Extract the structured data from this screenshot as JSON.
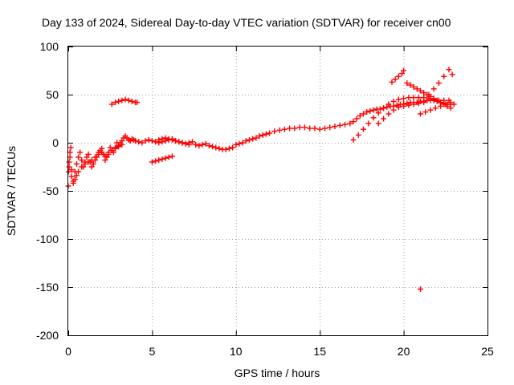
{
  "chart_data": {
    "type": "scatter",
    "title": "Day 133 of 2024, Sidereal Day-to-day VTEC variation (SDTVAR) for receiver cn00",
    "xlabel": "GPS time / hours",
    "ylabel": "SDTVAR / TECUs",
    "xlim": [
      0,
      25
    ],
    "ylim": [
      -200,
      100
    ],
    "x_ticks": [
      0,
      5,
      10,
      15,
      20,
      25
    ],
    "x_tick_labels": [
      "0",
      "5",
      "10",
      "15",
      "20",
      "25"
    ],
    "y_ticks": [
      -200,
      -150,
      -100,
      -50,
      0,
      50,
      100
    ],
    "y_tick_labels": [
      "-200",
      "-150",
      "-100",
      "-50",
      "0",
      "50",
      "100"
    ],
    "grid": true,
    "marker": "+",
    "color": "#ff0000",
    "series": [
      {
        "name": "SDTVAR",
        "x": [
          0.0,
          0.02,
          0.05,
          0.1,
          0.2,
          0.3,
          0.4,
          0.5,
          0.6,
          0.7,
          0.8,
          0.9,
          1.0,
          1.1,
          1.2,
          1.3,
          1.4,
          1.5,
          1.6,
          1.7,
          1.8,
          1.9,
          2.0,
          2.1,
          2.2,
          2.3,
          2.4,
          2.5,
          2.6,
          2.7,
          2.8,
          2.9,
          3.0,
          3.1,
          3.2,
          3.3,
          3.4,
          3.5,
          3.6,
          3.7,
          3.8,
          3.9,
          4.0,
          4.2,
          4.4,
          4.6,
          4.8,
          5.0,
          5.2,
          5.4,
          5.6,
          5.8,
          6.0,
          6.2,
          6.4,
          6.6,
          6.8,
          7.0,
          7.2,
          7.4,
          7.6,
          7.8,
          8.0,
          8.2,
          8.4,
          8.6,
          8.8,
          9.0,
          9.2,
          9.4,
          9.6,
          9.8,
          10.0,
          10.2,
          10.4,
          10.6,
          10.8,
          11.0,
          11.2,
          11.4,
          11.6,
          11.8,
          12.0,
          12.3,
          12.6,
          12.9,
          13.2,
          13.5,
          13.8,
          14.1,
          14.4,
          14.7,
          15.0,
          15.3,
          15.6,
          15.9,
          16.2,
          16.5,
          16.8,
          17.0,
          17.2,
          17.4,
          17.6,
          17.8,
          18.0,
          18.2,
          18.4,
          18.6,
          18.8,
          19.0,
          19.2,
          19.4,
          19.6,
          19.8,
          20.0,
          20.2,
          20.4,
          20.6,
          20.8,
          21.0,
          21.2,
          21.4,
          21.6,
          21.8,
          22.0,
          22.2,
          22.4,
          22.6,
          22.8,
          23.0,
          0.05,
          0.1,
          0.15,
          0.2,
          0.3,
          0.4,
          0.5,
          0.6,
          0.8,
          1.0,
          1.2,
          1.4,
          1.6,
          1.8,
          2.0,
          2.2,
          2.4,
          2.6,
          2.8,
          3.0,
          3.2,
          2.6,
          2.8,
          3.0,
          3.2,
          3.4,
          3.6,
          3.8,
          4.0,
          4.1,
          5.0,
          5.2,
          5.4,
          5.6,
          5.8,
          6.0,
          6.2,
          5.4,
          5.6,
          5.8,
          6.0,
          6.2,
          6.4,
          6.6,
          6.8,
          7.0,
          7.2,
          17.0,
          17.3,
          17.6,
          17.9,
          18.2,
          18.5,
          18.8,
          19.1,
          19.4,
          19.7,
          20.0,
          20.3,
          20.6,
          20.9,
          21.2,
          21.5,
          21.8,
          22.1,
          22.4,
          22.7,
          19.3,
          19.5,
          19.7,
          19.9,
          20.0,
          20.2,
          20.4,
          20.6,
          20.8,
          21.0,
          21.2,
          21.4,
          21.6,
          21.8,
          22.0,
          22.2,
          22.4,
          22.6,
          22.8,
          21.5,
          21.8,
          22.1,
          22.4,
          22.7,
          21.0,
          21.3,
          21.6,
          21.9,
          22.2,
          22.5,
          22.8,
          18.5,
          18.8,
          19.1,
          19.4,
          19.7,
          20.0,
          20.3,
          20.6,
          20.9,
          21.2,
          22.9,
          21.0
        ],
        "y": [
          -45,
          -30,
          -20,
          -10,
          -35,
          -40,
          -30,
          -22,
          -15,
          -10,
          -18,
          -25,
          -20,
          -15,
          -12,
          -20,
          -25,
          -22,
          -18,
          -15,
          -10,
          -8,
          -6,
          -12,
          -18,
          -15,
          -10,
          -5,
          -8,
          -10,
          -5,
          0,
          -3,
          0,
          2,
          5,
          7,
          5,
          3,
          2,
          4,
          3,
          2,
          1,
          0,
          2,
          3,
          2,
          1,
          0,
          1,
          2,
          3,
          4,
          2,
          1,
          0,
          -1,
          0,
          1,
          -2,
          -3,
          -2,
          -1,
          -3,
          -4,
          -5,
          -6,
          -7,
          -7,
          -6,
          -5,
          -2,
          -1,
          0,
          2,
          3,
          4,
          5,
          7,
          8,
          9,
          10,
          12,
          13,
          14,
          15,
          15,
          16,
          16,
          15,
          15,
          14,
          15,
          16,
          17,
          18,
          19,
          20,
          22,
          25,
          28,
          30,
          32,
          33,
          34,
          35,
          35,
          36,
          37,
          38,
          38,
          39,
          40,
          40,
          41,
          42,
          42,
          42,
          43,
          43,
          44,
          44,
          44,
          43,
          42,
          41,
          40,
          40,
          40,
          -25,
          -15,
          -5,
          -28,
          -42,
          -38,
          -34,
          -30,
          -25,
          -22,
          -20,
          -18,
          -15,
          -12,
          -10,
          -14,
          -12,
          -8,
          -6,
          -4,
          -2,
          40,
          42,
          43,
          44,
          45,
          44,
          43,
          42,
          42,
          -20,
          -19,
          -18,
          -17,
          -16,
          -15,
          -14,
          3,
          4,
          5,
          4,
          3,
          2,
          1,
          0,
          -1,
          -2,
          3,
          8,
          14,
          20,
          26,
          31,
          36,
          40,
          43,
          45,
          46,
          47,
          47,
          47,
          47,
          46,
          45,
          44,
          44,
          44,
          63,
          66,
          69,
          72,
          75,
          62,
          60,
          58,
          56,
          54,
          52,
          50,
          48,
          46,
          44,
          42,
          40,
          38,
          36,
          50,
          56,
          62,
          69,
          76,
          30,
          32,
          34,
          36,
          38,
          40,
          42,
          20,
          25,
          30,
          34,
          37,
          38,
          39,
          40,
          41,
          42,
          71,
          -152
        ]
      }
    ]
  }
}
